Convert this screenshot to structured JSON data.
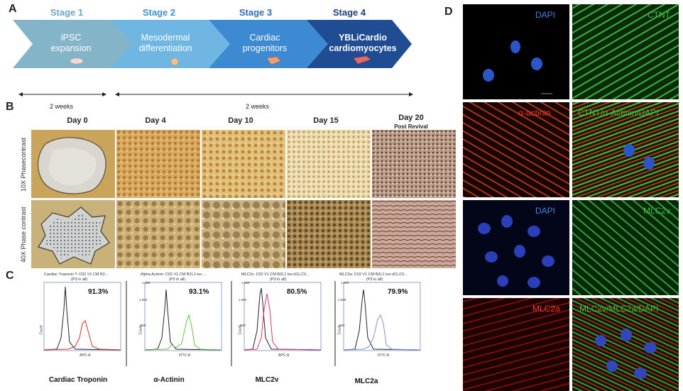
{
  "panels": {
    "a": "A",
    "b": "B",
    "c": "C",
    "d": "D"
  },
  "stages": [
    {
      "title": "Stage 1",
      "title_color": "#6aa7c6",
      "line1": "iPSC",
      "line2": "expansion",
      "fill": "#7fb2c8"
    },
    {
      "title": "Stage 2",
      "title_color": "#3f8fd1",
      "line1": "Mesodermal",
      "line2": "differentiation",
      "fill": "#6fb3e2"
    },
    {
      "title": "Stage 3",
      "title_color": "#2e6db5",
      "line1": "Cardiac",
      "line2": "progenitors",
      "fill": "#3e8fd6"
    },
    {
      "title": "Stage 4",
      "title_color": "#1f3f7a",
      "line1": "YBLiCardio",
      "line2": "cardiomyocytes",
      "fill": "#1e4c93"
    }
  ],
  "timeline": {
    "left_label": "2 weeks",
    "right_label": "2 weeks"
  },
  "days": [
    {
      "label": "Day 0",
      "sub": ""
    },
    {
      "label": "Day 4",
      "sub": ""
    },
    {
      "label": "Day 10",
      "sub": ""
    },
    {
      "label": "Day 15",
      "sub": ""
    },
    {
      "label": "Day 20",
      "sub": "Post Revival"
    }
  ],
  "row_labels": {
    "row1": "10X Phasecontrast",
    "row2": "40X Phase contrast"
  },
  "flow": [
    {
      "title": "Cardiac Troponin T: C02 V1 CM B2...",
      "gate": "(P3 in all)",
      "pct": "91.3%",
      "axis": "APC-A",
      "name": "Cardiac Troponin",
      "color": "#d9302a",
      "ymax": "",
      "yticks": [
        "",
        ""
      ]
    },
    {
      "title": "Alpha Actinin: C02 V1 CM B2L1 lso ...",
      "gate": "(P3 in all)",
      "pct": "93.1%",
      "axis": "FITC-A",
      "name": "α-Actinin",
      "color": "#6cc04a",
      "ymax": "1,289",
      "yticks": [
        "500",
        "1,000"
      ]
    },
    {
      "title": "MLC2v: C02 V1 CM B2L1 lso-d11,C0...",
      "gate": "(P3 in all)",
      "pct": "80.5%",
      "axis": "APC-A",
      "name": "MLC2v",
      "color": "#e0306a",
      "ymax": "1,090",
      "yticks": [
        "500",
        "1,000"
      ]
    },
    {
      "title": "MLC2a: C02 V1 CM B2L1 lso-d11,C0...",
      "gate": "(P3 in all)",
      "pct": "79.9%",
      "axis": "FITC-A",
      "name": "MLC2a",
      "color": "#8a8fcf",
      "ymax": "1,000",
      "yticks": [
        "500",
        "1,000"
      ]
    }
  ],
  "fc_common": {
    "ylabel": "Count"
  },
  "if_labels": [
    {
      "text": "DAPI",
      "color": "#4a7fe0"
    },
    {
      "text": "CTNT",
      "color": "#3fbf3f"
    },
    {
      "text": "α-actinin",
      "color": "#ff3a2a"
    },
    {
      "text": "CTNT/α-Actinin/DAPI",
      "color": "#3fbf3f"
    },
    {
      "text": "DAPI",
      "color": "#4a7fe0"
    },
    {
      "text": "MLC2v",
      "color": "#3fbf3f"
    },
    {
      "text": "MLC2a",
      "color": "#ff3a2a"
    },
    {
      "text": "MLC2v/MLC2a/DAPI",
      "color": "#3fbf3f"
    }
  ]
}
